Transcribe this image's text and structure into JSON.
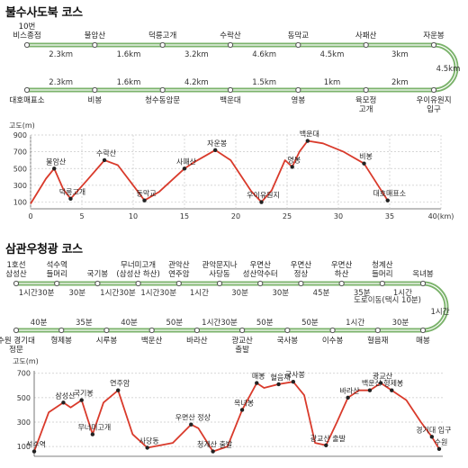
{
  "course1": {
    "title": "불수사도북 코스",
    "top_stops": [
      {
        "name": "10번\n비스종점",
        "km": ""
      },
      {
        "name": "불암산",
        "km": "2.3km"
      },
      {
        "name": "덕릉고개",
        "km": "1.6km"
      },
      {
        "name": "수락산",
        "km": "3.2km"
      },
      {
        "name": "동막교",
        "km": "4.6km"
      },
      {
        "name": "사패산",
        "km": "4.5km"
      },
      {
        "name": "자운봉",
        "km": "3km"
      }
    ],
    "right_km": "4.5km",
    "bottom_stops": [
      {
        "name": "대호매표소",
        "km": "2.3km"
      },
      {
        "name": "비봉",
        "km": "1.6km"
      },
      {
        "name": "청수동암문",
        "km": "4.2km"
      },
      {
        "name": "백운대",
        "km": "1.5km"
      },
      {
        "name": "영봉",
        "km": "1km"
      },
      {
        "name": "육모정\n고개",
        "km": "2km"
      },
      {
        "name": "우이유원지\n입구",
        "km": ""
      }
    ],
    "profile": {
      "y_label": "고도(m)",
      "y_ticks": [
        "900",
        "700",
        "500",
        "300",
        "100"
      ],
      "x_ticks": [
        "0",
        "5",
        "10",
        "15",
        "20",
        "25",
        "30",
        "35",
        "40(km)"
      ],
      "line_color": "#d93a2b",
      "points": [
        {
          "x": 0,
          "y": 80
        },
        {
          "x": 1.5,
          "y": 380
        },
        {
          "x": 2.3,
          "y": 500
        },
        {
          "x": 3.2,
          "y": 250
        },
        {
          "x": 3.9,
          "y": 140
        },
        {
          "x": 5.5,
          "y": 360
        },
        {
          "x": 7.2,
          "y": 600
        },
        {
          "x": 8.5,
          "y": 540
        },
        {
          "x": 10.0,
          "y": 300
        },
        {
          "x": 11.1,
          "y": 120
        },
        {
          "x": 12.5,
          "y": 220
        },
        {
          "x": 15.0,
          "y": 500
        },
        {
          "x": 16.0,
          "y": 580
        },
        {
          "x": 18.0,
          "y": 720
        },
        {
          "x": 19.5,
          "y": 600
        },
        {
          "x": 21.5,
          "y": 230
        },
        {
          "x": 22.5,
          "y": 100
        },
        {
          "x": 23.5,
          "y": 240
        },
        {
          "x": 24.8,
          "y": 600
        },
        {
          "x": 25.5,
          "y": 520
        },
        {
          "x": 26.2,
          "y": 700
        },
        {
          "x": 27.0,
          "y": 830
        },
        {
          "x": 28.5,
          "y": 800
        },
        {
          "x": 30.5,
          "y": 700
        },
        {
          "x": 32.5,
          "y": 560
        },
        {
          "x": 34.8,
          "y": 120
        }
      ],
      "labels": [
        {
          "text": "불암산",
          "x": 2.3,
          "y": 500
        },
        {
          "text": "덕릉고개",
          "x": 3.9,
          "y": 140
        },
        {
          "text": "수락산",
          "x": 7.2,
          "y": 600
        },
        {
          "text": "동막교",
          "x": 11.1,
          "y": 120
        },
        {
          "text": "사패산",
          "x": 15.0,
          "y": 500
        },
        {
          "text": "자운봉",
          "x": 18.0,
          "y": 720
        },
        {
          "text": "우이유원지",
          "x": 22.5,
          "y": 100
        },
        {
          "text": "영봉",
          "x": 25.5,
          "y": 520
        },
        {
          "text": "백운대",
          "x": 27.0,
          "y": 830
        },
        {
          "text": "비봉",
          "x": 32.5,
          "y": 560
        },
        {
          "text": "대호매표소",
          "x": 34.8,
          "y": 120
        }
      ]
    }
  },
  "course2": {
    "title": "삼관우청광 코스",
    "top_stops": [
      {
        "name": "1호선\n삼성산",
        "time": ""
      },
      {
        "name": "석수역\n들머리",
        "time": "1시간30분"
      },
      {
        "name": "국기봉",
        "time": "30분"
      },
      {
        "name": "무너미고개\n(삼성산 하산)",
        "time": "1시간30분"
      },
      {
        "name": "관악산\n연주암",
        "time": "1시간30분"
      },
      {
        "name": "관악문지나\n사당동",
        "time": "1시간"
      },
      {
        "name": "우면산\n성산약수터",
        "time": "30분"
      },
      {
        "name": "우면산\n정상",
        "time": "30분"
      },
      {
        "name": "우면산\n하산",
        "time": "45분"
      },
      {
        "name": "청계산\n들머리",
        "time": "35분"
      },
      {
        "name": "옥녀봉",
        "time": "1시간"
      }
    ],
    "right_time": "1시간",
    "right_note": "도로이동(택시 10분)",
    "bottom_stops": [
      {
        "name": "수원 경기대\n정문",
        "time": "40분"
      },
      {
        "name": "형제봉",
        "time": "35분"
      },
      {
        "name": "시루봉",
        "time": "40분"
      },
      {
        "name": "백운산",
        "time": "50분"
      },
      {
        "name": "바라산",
        "time": "1시간30분"
      },
      {
        "name": "광교산\n출발",
        "time": "50분"
      },
      {
        "name": "국사봉",
        "time": "50분"
      },
      {
        "name": "이수봉",
        "time": "1시간"
      },
      {
        "name": "혈음재",
        "time": "30분"
      },
      {
        "name": "매봉",
        "time": ""
      }
    ],
    "profile": {
      "y_label": "고도(m)",
      "y_ticks": [
        "700",
        "500",
        "300",
        "100"
      ],
      "line_color": "#d93a2b",
      "points": [
        {
          "x": 0,
          "y": 60
        },
        {
          "x": 2,
          "y": 380
        },
        {
          "x": 4,
          "y": 460
        },
        {
          "x": 5,
          "y": 420
        },
        {
          "x": 6.5,
          "y": 480
        },
        {
          "x": 8,
          "y": 200
        },
        {
          "x": 9.5,
          "y": 460
        },
        {
          "x": 11.5,
          "y": 560
        },
        {
          "x": 13.5,
          "y": 200
        },
        {
          "x": 15.5,
          "y": 90
        },
        {
          "x": 19,
          "y": 130
        },
        {
          "x": 21.5,
          "y": 280
        },
        {
          "x": 22.5,
          "y": 250
        },
        {
          "x": 24.5,
          "y": 60
        },
        {
          "x": 26.5,
          "y": 100
        },
        {
          "x": 28.5,
          "y": 400
        },
        {
          "x": 30.5,
          "y": 620
        },
        {
          "x": 31.5,
          "y": 580
        },
        {
          "x": 33.5,
          "y": 610
        },
        {
          "x": 35.5,
          "y": 630
        },
        {
          "x": 37,
          "y": 520
        },
        {
          "x": 38.5,
          "y": 130
        },
        {
          "x": 40,
          "y": 110
        },
        {
          "x": 41.5,
          "y": 300
        },
        {
          "x": 43,
          "y": 500
        },
        {
          "x": 44.5,
          "y": 560
        },
        {
          "x": 46,
          "y": 560
        },
        {
          "x": 47.5,
          "y": 620
        },
        {
          "x": 49,
          "y": 560
        },
        {
          "x": 51,
          "y": 480
        },
        {
          "x": 53,
          "y": 300
        },
        {
          "x": 54.5,
          "y": 180
        },
        {
          "x": 55.5,
          "y": 80
        }
      ],
      "labels": [
        {
          "text": "석수역",
          "x": 0,
          "y": 60
        },
        {
          "text": "삼성산",
          "x": 4,
          "y": 460
        },
        {
          "text": "국기봉",
          "x": 6.5,
          "y": 480
        },
        {
          "text": "무너미고개",
          "x": 8,
          "y": 200
        },
        {
          "text": "연주암",
          "x": 11.5,
          "y": 560
        },
        {
          "text": "사당동",
          "x": 15.5,
          "y": 90
        },
        {
          "text": "우면산 정상",
          "x": 21.5,
          "y": 280
        },
        {
          "text": "청계산 출발",
          "x": 24.5,
          "y": 60
        },
        {
          "text": "옥녀봉",
          "x": 28.5,
          "y": 400
        },
        {
          "text": "매봉",
          "x": 30.5,
          "y": 620
        },
        {
          "text": "혈음재",
          "x": 33.5,
          "y": 610
        },
        {
          "text": "국사봉",
          "x": 35.5,
          "y": 630
        },
        {
          "text": "광교산 출발",
          "x": 40,
          "y": 110
        },
        {
          "text": "바라산",
          "x": 43,
          "y": 500
        },
        {
          "text": "백운산",
          "x": 46,
          "y": 560
        },
        {
          "text": "광교산",
          "x": 47.5,
          "y": 620
        },
        {
          "text": "형제봉",
          "x": 49,
          "y": 560
        },
        {
          "text": "경기대 입구",
          "x": 54.5,
          "y": 180
        },
        {
          "text": "수원",
          "x": 55.5,
          "y": 80
        }
      ]
    }
  },
  "colors": {
    "route": "#7bb36b",
    "profile": "#d93a2b",
    "grid": "#c9c9c9"
  }
}
